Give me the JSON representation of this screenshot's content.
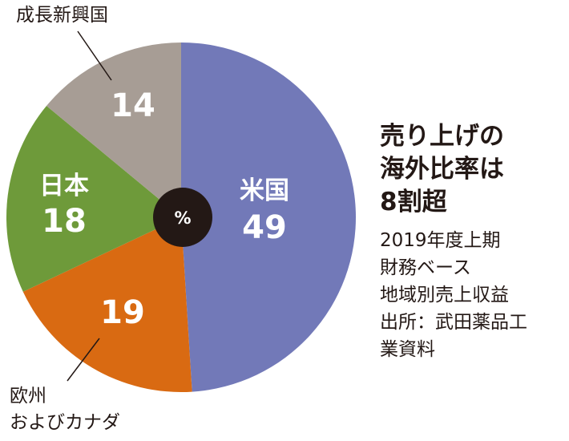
{
  "chart_data": {
    "type": "pie",
    "unit_label": "%",
    "slices": [
      {
        "name": "米国",
        "value": 49,
        "color": "#7279b8"
      },
      {
        "name": "欧州\nおよびカナダ",
        "value": 19,
        "color": "#d96a12"
      },
      {
        "name": "日本",
        "value": 18,
        "color": "#6e9a3a"
      },
      {
        "name": "成長新興国",
        "value": 14,
        "color": "#a79d95"
      }
    ],
    "center_color": "#231815"
  },
  "headline": [
    "売り上げの",
    "海外比率は",
    "8割超"
  ],
  "note": [
    "2019年度上期",
    "財務ベース",
    "地域別売上収益",
    "出所：武田薬品工",
    "業資料"
  ]
}
